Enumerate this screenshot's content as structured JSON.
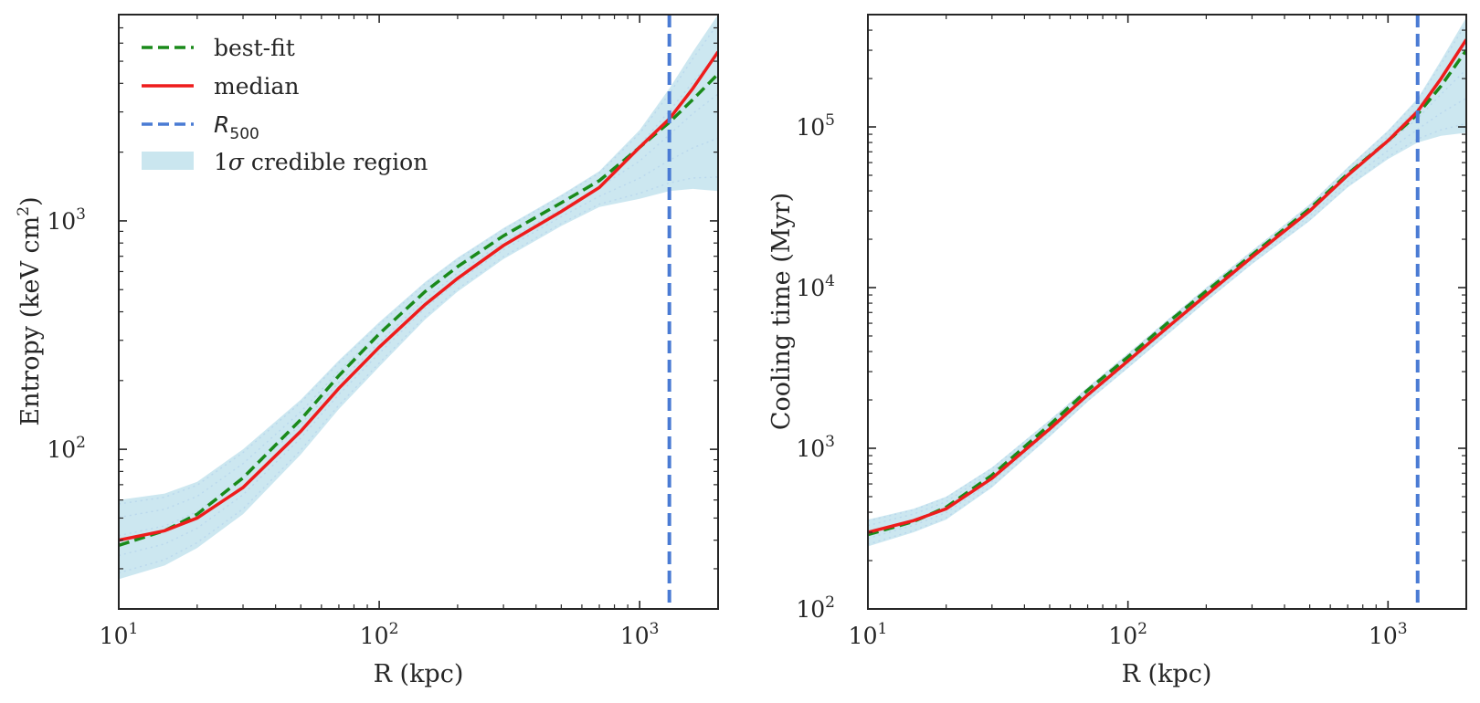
{
  "chart_data": [
    {
      "type": "line",
      "panel": "left",
      "xlabel": "R (kpc)",
      "ylabel": "Entropy (keV cm",
      "ylabel_sup": "2",
      "ylabel_close": ")",
      "xscale": "log",
      "yscale": "log",
      "xlim": [
        10,
        2000
      ],
      "ylim": [
        20,
        8000
      ],
      "xticks": [
        {
          "value": 10,
          "base": "10",
          "exp": "1"
        },
        {
          "value": 100,
          "base": "10",
          "exp": "2"
        },
        {
          "value": 1000,
          "base": "10",
          "exp": "3"
        }
      ],
      "yticks": [
        {
          "value": 100,
          "base": "10",
          "exp": "2"
        },
        {
          "value": 1000,
          "base": "10",
          "exp": "3"
        }
      ],
      "r500": 1300,
      "grid": false,
      "legend_position": "top-left",
      "legend": [
        {
          "label": "best-fit",
          "style": "dashed",
          "color": "#1a8a1a"
        },
        {
          "label": "median",
          "style": "solid",
          "color": "#ee1c1c"
        },
        {
          "label_base": "R",
          "label_sub": "500",
          "style": "dashed",
          "color": "#4a7bd4"
        },
        {
          "label_prefix": "1",
          "label_sigma": "σ",
          "label_rest": " credible region",
          "style": "band",
          "color": "#add8e6"
        }
      ],
      "series": [
        {
          "name": "best-fit",
          "x": [
            10,
            15,
            20,
            30,
            50,
            70,
            100,
            150,
            200,
            300,
            500,
            700,
            1000,
            1300,
            1600,
            2000
          ],
          "y": [
            38,
            44,
            52,
            75,
            135,
            210,
            320,
            490,
            630,
            860,
            1200,
            1500,
            2100,
            2700,
            3400,
            4400
          ]
        },
        {
          "name": "median",
          "x": [
            10,
            15,
            20,
            30,
            50,
            70,
            100,
            150,
            200,
            300,
            500,
            700,
            1000,
            1300,
            1600,
            2000
          ],
          "y": [
            40,
            44,
            50,
            68,
            120,
            185,
            280,
            430,
            560,
            780,
            1100,
            1400,
            2100,
            2800,
            3800,
            5500
          ]
        },
        {
          "name": "1σ credible region",
          "x": [
            10,
            15,
            20,
            30,
            50,
            70,
            100,
            150,
            200,
            300,
            500,
            700,
            1000,
            1300,
            1600,
            2000
          ],
          "lower": [
            27,
            31,
            37,
            52,
            95,
            150,
            230,
            370,
            490,
            680,
            950,
            1150,
            1250,
            1350,
            1380,
            1350
          ],
          "upper": [
            60,
            64,
            72,
            100,
            165,
            245,
            360,
            540,
            690,
            930,
            1300,
            1650,
            2500,
            3800,
            5500,
            8000
          ]
        }
      ]
    },
    {
      "type": "line",
      "panel": "right",
      "xlabel": "R (kpc)",
      "ylabel": "Cooling time (Myr)",
      "xscale": "log",
      "yscale": "log",
      "xlim": [
        10,
        2000
      ],
      "ylim": [
        100,
        500000
      ],
      "xticks": [
        {
          "value": 10,
          "base": "10",
          "exp": "1"
        },
        {
          "value": 100,
          "base": "10",
          "exp": "2"
        },
        {
          "value": 1000,
          "base": "10",
          "exp": "3"
        }
      ],
      "yticks": [
        {
          "value": 100,
          "base": "10",
          "exp": "2"
        },
        {
          "value": 1000,
          "base": "10",
          "exp": "3"
        },
        {
          "value": 10000,
          "base": "10",
          "exp": "4"
        },
        {
          "value": 100000,
          "base": "10",
          "exp": "5"
        }
      ],
      "r500": 1300,
      "grid": false,
      "series": [
        {
          "name": "best-fit",
          "x": [
            10,
            15,
            20,
            30,
            50,
            70,
            100,
            150,
            200,
            300,
            500,
            700,
            1000,
            1300,
            1600,
            2000
          ],
          "y": [
            290,
            350,
            430,
            680,
            1400,
            2300,
            3700,
            6500,
            9500,
            16000,
            31000,
            51000,
            82000,
            120000,
            180000,
            300000
          ]
        },
        {
          "name": "median",
          "x": [
            10,
            15,
            20,
            30,
            50,
            70,
            100,
            150,
            200,
            300,
            500,
            700,
            1000,
            1300,
            1600,
            2000
          ],
          "y": [
            300,
            355,
            420,
            650,
            1320,
            2150,
            3500,
            6100,
            9000,
            15500,
            30000,
            50000,
            82000,
            125000,
            200000,
            350000
          ]
        },
        {
          "name": "1σ credible region",
          "x": [
            10,
            15,
            20,
            30,
            50,
            70,
            100,
            150,
            200,
            300,
            500,
            700,
            1000,
            1300,
            1600,
            2000
          ],
          "lower": [
            245,
            300,
            360,
            570,
            1180,
            1950,
            3150,
            5500,
            8200,
            14000,
            26000,
            42000,
            63000,
            80000,
            88000,
            92000
          ],
          "upper": [
            360,
            420,
            500,
            760,
            1500,
            2400,
            3900,
            6800,
            10000,
            17000,
            33000,
            56000,
            95000,
            150000,
            260000,
            480000
          ]
        }
      ]
    }
  ]
}
